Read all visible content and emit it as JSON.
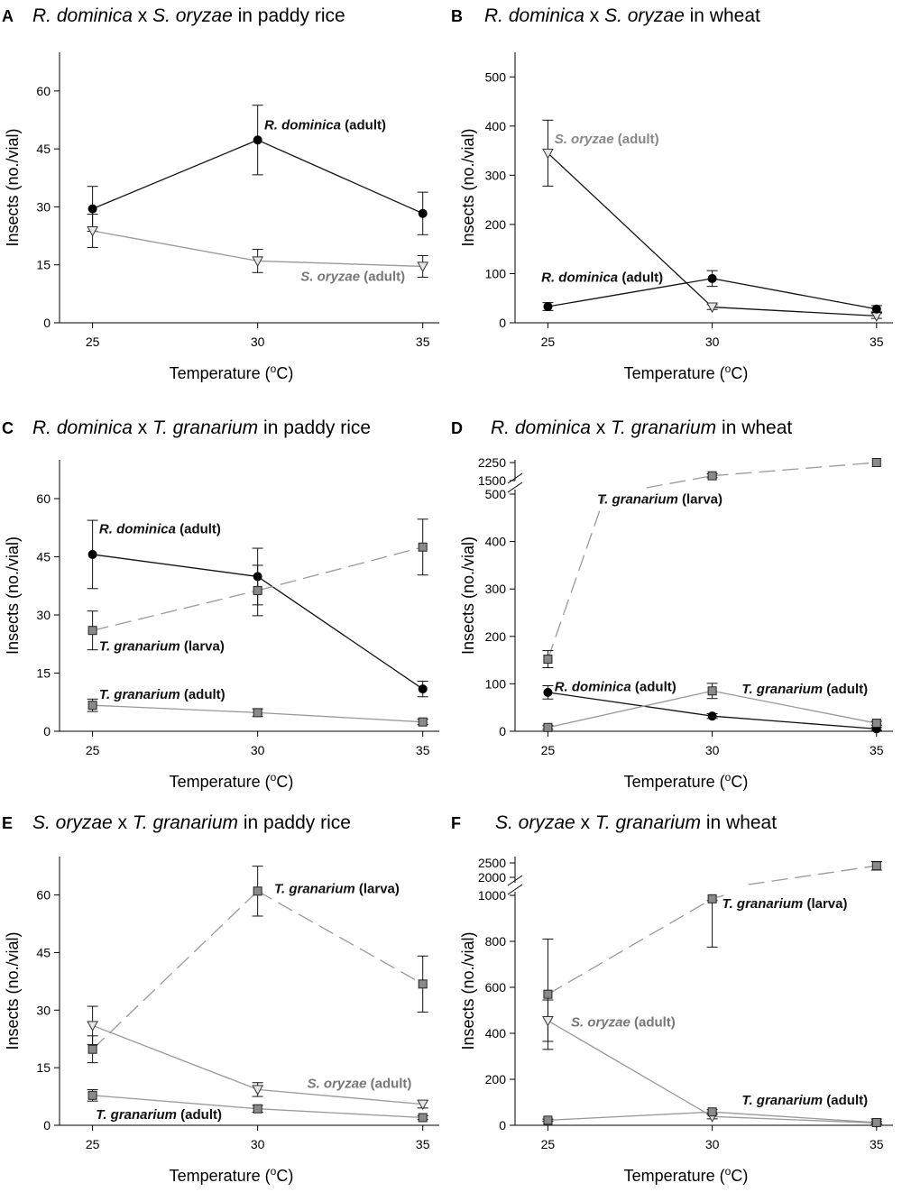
{
  "figure": {
    "xlabel_prefix": "Temperature (",
    "xlabel_sup": "o",
    "xlabel_suffix": "C)"
  },
  "chart_data": [
    {
      "id": "A",
      "letter": "A",
      "type": "line",
      "title": [
        {
          "t": "R. dominica",
          "i": true
        },
        {
          "t": " x ",
          "i": false
        },
        {
          "t": "S. oryzae",
          "i": true
        },
        {
          "t": " in paddy rice",
          "i": false
        }
      ],
      "xlabel": "Temperature (°C)",
      "ylabel": "Insects (no./vial)",
      "x": [
        25,
        30,
        35
      ],
      "xlim": [
        24,
        35.5
      ],
      "ylim": [
        0,
        70
      ],
      "yticks": [
        0,
        15,
        30,
        45,
        60
      ],
      "series": [
        {
          "name": "R. dominica (adult)",
          "values": [
            29.5,
            47.3,
            28.3
          ],
          "errors": [
            5.8,
            9,
            5.5
          ],
          "marker": "circle",
          "line": "black",
          "dash": false,
          "label": {
            "parts": [
              {
                "t": "R. dominica",
                "i": true
              },
              {
                "t": " (adult)",
                "i": false
              }
            ],
            "at": [
              30.2,
              50
            ],
            "color": "#111"
          }
        },
        {
          "name": "S. oryzae (adult)",
          "values": [
            23.8,
            16,
            14.6
          ],
          "errors": [
            4.3,
            3,
            2.8
          ],
          "marker": "triangle",
          "line": "gray",
          "dash": false,
          "label": {
            "parts": [
              {
                "t": "S. oryzae",
                "i": true
              },
              {
                "t": " (adult)",
                "i": false
              }
            ],
            "at": [
              31.3,
              10.8
            ],
            "color": "#777"
          }
        }
      ]
    },
    {
      "id": "B",
      "letter": "B",
      "type": "line",
      "title": [
        {
          "t": "R. dominica",
          "i": true
        },
        {
          "t": " x ",
          "i": false
        },
        {
          "t": "S. oryzae",
          "i": true
        },
        {
          "t": " in wheat",
          "i": false
        }
      ],
      "xlabel": "Temperature (°C)",
      "ylabel": "Insects (no./vial)",
      "x": [
        25,
        30,
        35
      ],
      "xlim": [
        24,
        35.5
      ],
      "ylim": [
        0,
        550
      ],
      "yticks": [
        0,
        100,
        200,
        300,
        400,
        500
      ],
      "series": [
        {
          "name": "S. oryzae (adult)",
          "values": [
            345,
            32,
            14
          ],
          "errors": [
            67,
            5,
            5
          ],
          "marker": "triangle",
          "line": "black",
          "dash": false,
          "label": {
            "parts": [
              {
                "t": "S. oryzae",
                "i": true
              },
              {
                "t": " (adult)",
                "i": false
              }
            ],
            "at": [
              25.2,
              365
            ],
            "color": "#888"
          }
        },
        {
          "name": "R. dominica (adult)",
          "values": [
            33,
            90,
            28
          ],
          "errors": [
            8,
            16,
            7
          ],
          "marker": "circle",
          "line": "black",
          "dash": false,
          "label": {
            "parts": [
              {
                "t": "R. dominica",
                "i": true
              },
              {
                "t": " (adult)",
                "i": false
              }
            ],
            "at": [
              24.8,
              83
            ],
            "color": "#111"
          }
        }
      ]
    },
    {
      "id": "C",
      "letter": "C",
      "type": "line",
      "title": [
        {
          "t": "R. dominica",
          "i": true
        },
        {
          "t": " x ",
          "i": false
        },
        {
          "t": "T. granarium",
          "i": true
        },
        {
          "t": " in paddy rice",
          "i": false
        }
      ],
      "xlabel": "Temperature (°C)",
      "ylabel": "Insects (no./vial)",
      "x": [
        25,
        30,
        35
      ],
      "xlim": [
        24,
        35.5
      ],
      "ylim": [
        0,
        70
      ],
      "yticks": [
        0,
        15,
        30,
        45,
        60
      ],
      "series": [
        {
          "name": "R. dominica (adult)",
          "values": [
            45.6,
            39.9,
            10.9
          ],
          "errors": [
            8.8,
            7.3,
            2
          ],
          "marker": "circle",
          "line": "black",
          "dash": false,
          "label": {
            "parts": [
              {
                "t": "R. dominica",
                "i": true
              },
              {
                "t": " (adult)",
                "i": false
              }
            ],
            "at": [
              25.2,
              51
            ],
            "color": "#111"
          }
        },
        {
          "name": "T. granarium (larva)",
          "values": [
            26,
            36.3,
            47.5
          ],
          "errors": [
            5,
            6.5,
            7.2
          ],
          "marker": "square",
          "line": "gray",
          "dash": true,
          "label": {
            "parts": [
              {
                "t": "T. granarium",
                "i": true
              },
              {
                "t": " (larva)",
                "i": false
              }
            ],
            "at": [
              25.2,
              20.8
            ],
            "color": "#111"
          }
        },
        {
          "name": "T. granarium (adult)",
          "values": [
            6.7,
            4.8,
            2.4
          ],
          "errors": [
            1.6,
            1,
            0.7
          ],
          "marker": "square",
          "line": "gray",
          "dash": false,
          "label": {
            "parts": [
              {
                "t": "T. granarium",
                "i": true
              },
              {
                "t": " (adult)",
                "i": false
              }
            ],
            "at": [
              25.2,
              8.4
            ],
            "color": "#111"
          }
        }
      ]
    },
    {
      "id": "D",
      "letter": "D",
      "type": "line",
      "broken": true,
      "title": [
        {
          "t": "R. dominica",
          "i": true
        },
        {
          "t": " x ",
          "i": false
        },
        {
          "t": "T. granarium",
          "i": true
        },
        {
          "t": " in wheat",
          "i": false
        }
      ],
      "xlabel": "Temperature (°C)",
      "ylabel": "Insects (no./vial)",
      "x": [
        25,
        30,
        35
      ],
      "xlim": [
        24,
        35.5
      ],
      "ylim": [
        0,
        500
      ],
      "yticks": [
        0,
        100,
        200,
        300,
        400,
        500
      ],
      "upper_range": [
        1500,
        2250
      ],
      "upper_ticks": [
        1500,
        2250
      ],
      "series": [
        {
          "name": "T. granarium (larva)",
          "values": [
            152,
            1700,
            2250
          ],
          "errors": [
            18,
            80,
            0
          ],
          "marker": "square",
          "line": "gray",
          "dash": true,
          "label": {
            "parts": [
              {
                "t": "T. granarium",
                "i": true
              },
              {
                "t": " (larva)",
                "i": false
              }
            ],
            "at": [
              26.5,
              480
            ],
            "color": "#111"
          }
        },
        {
          "name": "R. dominica (adult)",
          "values": [
            82,
            32,
            5
          ],
          "errors": [
            14,
            5,
            3
          ],
          "marker": "circle",
          "line": "black",
          "dash": false,
          "label": {
            "parts": [
              {
                "t": "R. dominica",
                "i": true
              },
              {
                "t": " (adult)",
                "i": false
              }
            ],
            "at": [
              25.2,
              85
            ],
            "color": "#111"
          }
        },
        {
          "name": "T. granarium (adult)",
          "values": [
            8,
            85,
            17
          ],
          "errors": [
            4,
            16,
            4
          ],
          "marker": "square",
          "line": "gray",
          "dash": false,
          "label": {
            "parts": [
              {
                "t": "T. granarium",
                "i": true
              },
              {
                "t": " (adult)",
                "i": false
              }
            ],
            "at": [
              30.9,
              80
            ],
            "color": "#111"
          }
        }
      ]
    },
    {
      "id": "E",
      "letter": "E",
      "type": "line",
      "title": [
        {
          "t": "S. oryzae",
          "i": true
        },
        {
          "t": " x ",
          "i": false
        },
        {
          "t": "T. granarium",
          "i": true
        },
        {
          "t": " in paddy rice",
          "i": false
        }
      ],
      "xlabel": "Temperature (°C)",
      "ylabel": "Insects (no./vial)",
      "x": [
        25,
        30,
        35
      ],
      "xlim": [
        24,
        35.5
      ],
      "ylim": [
        0,
        70
      ],
      "yticks": [
        0,
        15,
        30,
        45,
        60
      ],
      "series": [
        {
          "name": "T. granarium (larva)",
          "values": [
            19.8,
            61,
            36.8
          ],
          "errors": [
            3.5,
            6.5,
            7.3
          ],
          "marker": "square",
          "line": "gray",
          "dash": true,
          "label": {
            "parts": [
              {
                "t": "T. granarium",
                "i": true
              },
              {
                "t": " (larva)",
                "i": false
              }
            ],
            "at": [
              30.5,
              60.5
            ],
            "color": "#111"
          }
        },
        {
          "name": "S. oryzae (adult)",
          "values": [
            26,
            9.3,
            5.5
          ],
          "errors": [
            5,
            1.8,
            1
          ],
          "marker": "triangle",
          "line": "gray",
          "dash": false,
          "label": {
            "parts": [
              {
                "t": "S. oryzae",
                "i": true
              },
              {
                "t": " (adult)",
                "i": false
              }
            ],
            "at": [
              31.5,
              9.8
            ],
            "color": "#777"
          }
        },
        {
          "name": "T. granarium (adult)",
          "values": [
            7.8,
            4.3,
            2
          ],
          "errors": [
            1.5,
            0.9,
            0.5
          ],
          "marker": "square",
          "line": "gray",
          "dash": false,
          "label": {
            "parts": [
              {
                "t": "T. granarium",
                "i": true
              },
              {
                "t": " (adult)",
                "i": false
              }
            ],
            "at": [
              25.1,
              1.7
            ],
            "color": "#111"
          }
        }
      ]
    },
    {
      "id": "F",
      "letter": "F",
      "type": "line",
      "broken": true,
      "title": [
        {
          "t": "S. oryzae",
          "i": true
        },
        {
          "t": " x ",
          "i": false
        },
        {
          "t": "T. granarium",
          "i": true
        },
        {
          "t": " in wheat",
          "i": false
        }
      ],
      "xlabel": "Temperature (°C)",
      "ylabel": "Insects (no./vial)",
      "x": [
        25,
        30,
        35
      ],
      "xlim": [
        24,
        35.5
      ],
      "ylim": [
        0,
        1000
      ],
      "yticks": [
        0,
        200,
        400,
        600,
        800,
        1000
      ],
      "upper_range": [
        2000,
        2500
      ],
      "upper_ticks": [
        2000,
        2500
      ],
      "series": [
        {
          "name": "T. granarium (larva)",
          "values": [
            570,
            985,
            2400
          ],
          "errors": [
            240,
            210,
            150
          ],
          "marker": "square",
          "line": "gray",
          "dash": true,
          "label": {
            "parts": [
              {
                "t": "T. granarium",
                "i": true
              },
              {
                "t": " (larva)",
                "i": false
              }
            ],
            "at": [
              30.3,
              945
            ],
            "color": "#111"
          }
        },
        {
          "name": "S. oryzae (adult)",
          "values": [
            455,
            38,
            10
          ],
          "errors": [
            90,
            10,
            5
          ],
          "marker": "triangle",
          "line": "gray",
          "dash": false,
          "label": {
            "parts": [
              {
                "t": "S. oryzae",
                "i": true
              },
              {
                "t": " (adult)",
                "i": false
              }
            ],
            "at": [
              25.7,
              430
            ],
            "color": "#777"
          }
        },
        {
          "name": "T. granarium (adult)",
          "values": [
            22,
            58,
            12
          ],
          "errors": [
            5,
            10,
            5
          ],
          "marker": "square",
          "line": "gray",
          "dash": false,
          "label": {
            "parts": [
              {
                "t": "T. granarium",
                "i": true
              },
              {
                "t": " (adult)",
                "i": false
              }
            ],
            "at": [
              30.9,
              90
            ],
            "color": "#111"
          }
        }
      ]
    }
  ]
}
